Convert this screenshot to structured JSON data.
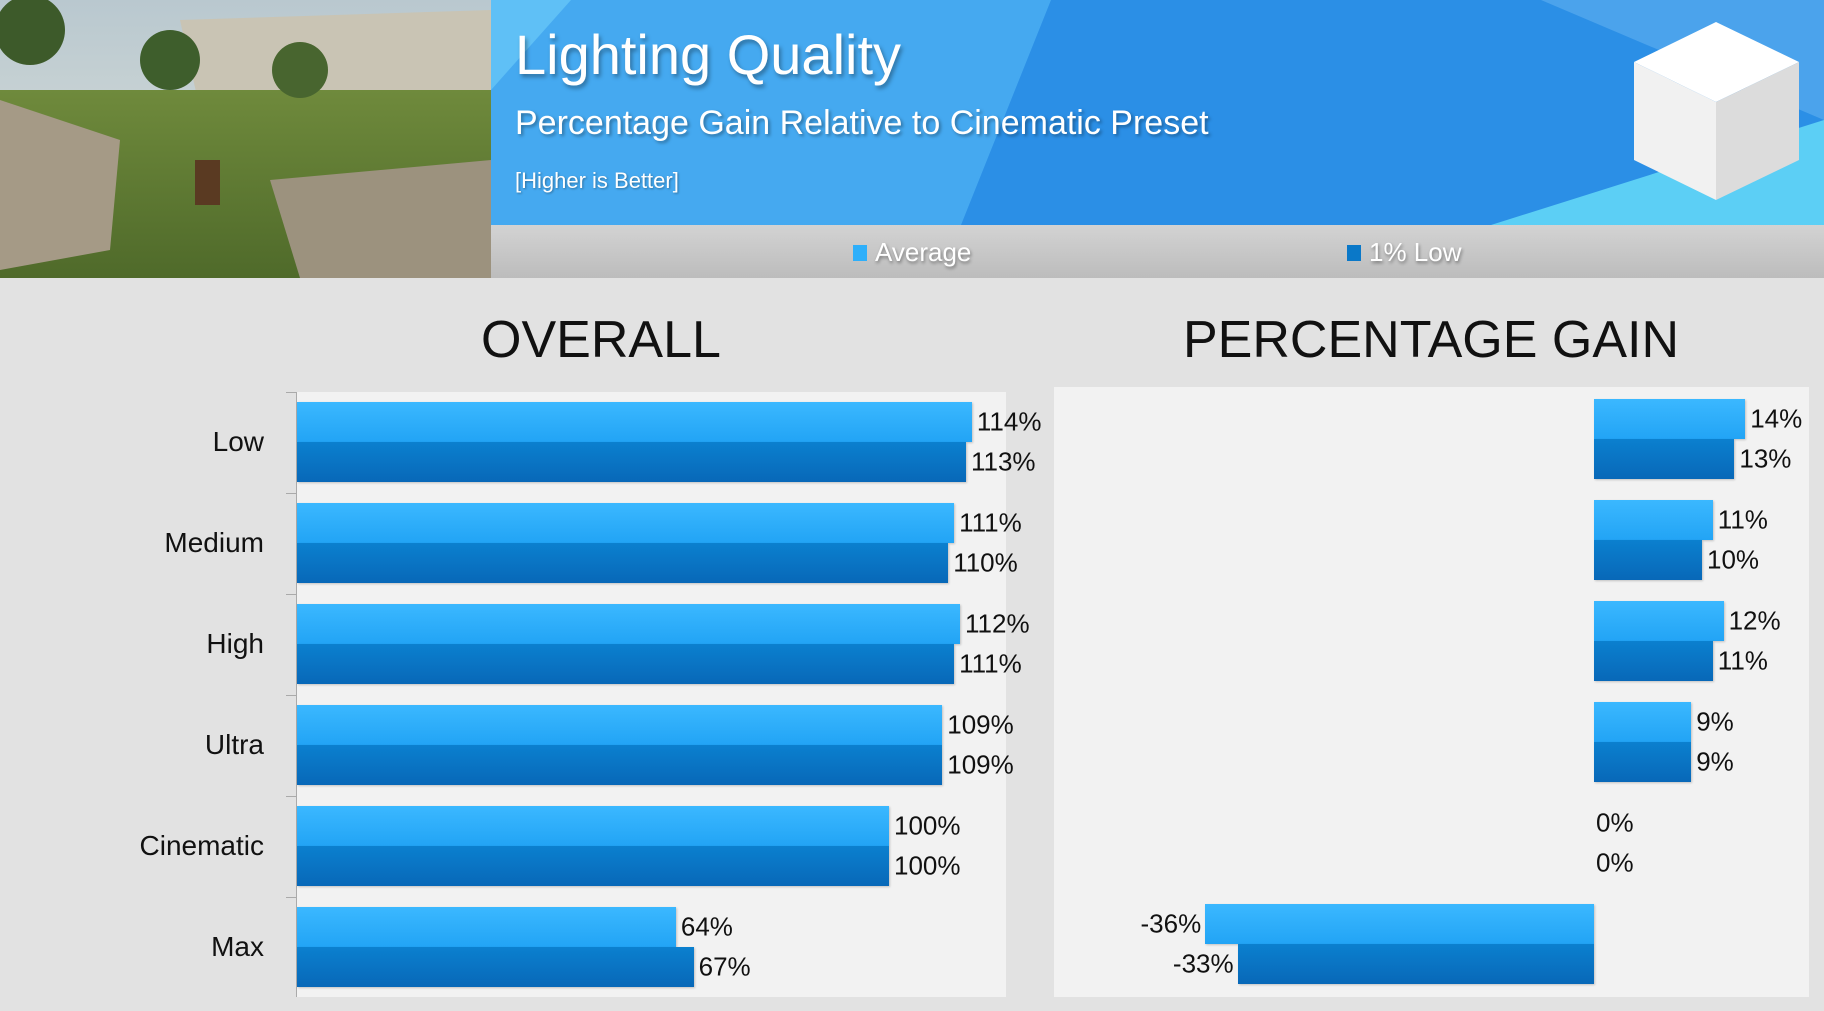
{
  "header": {
    "title": "Lighting Quality",
    "subtitle": "Percentage Gain Relative to Cinematic Preset",
    "note": "[Higher is Better]"
  },
  "legend": {
    "average": "Average",
    "low": "1% Low"
  },
  "colors": {
    "average": "#2eaffa",
    "low": "#0a78c8",
    "banner": "#45a9f0"
  },
  "chart_data": [
    {
      "type": "bar",
      "orientation": "horizontal",
      "title": "OVERALL",
      "categories": [
        "Low",
        "Medium",
        "High",
        "Ultra",
        "Cinematic",
        "Max"
      ],
      "series": [
        {
          "name": "Average",
          "values": [
            114,
            111,
            112,
            109,
            100,
            64
          ],
          "labels": [
            "114%",
            "111%",
            "112%",
            "109%",
            "100%",
            "64%"
          ]
        },
        {
          "name": "1% Low",
          "values": [
            113,
            110,
            111,
            109,
            100,
            67
          ],
          "labels": [
            "113%",
            "110%",
            "111%",
            "109%",
            "100%",
            "67%"
          ]
        }
      ]
    },
    {
      "type": "bar",
      "orientation": "horizontal",
      "title": "PERCENTAGE GAIN",
      "categories": [
        "Low",
        "Medium",
        "High",
        "Ultra",
        "Cinematic",
        "Max"
      ],
      "series": [
        {
          "name": "Average",
          "values": [
            14,
            11,
            12,
            9,
            0,
            -36
          ],
          "labels": [
            "14%",
            "11%",
            "12%",
            "9%",
            "0%",
            "-36%"
          ]
        },
        {
          "name": "1% Low",
          "values": [
            13,
            10,
            11,
            9,
            0,
            -33
          ],
          "labels": [
            "13%",
            "10%",
            "11%",
            "9%",
            "0%",
            "-33%"
          ]
        }
      ]
    }
  ]
}
